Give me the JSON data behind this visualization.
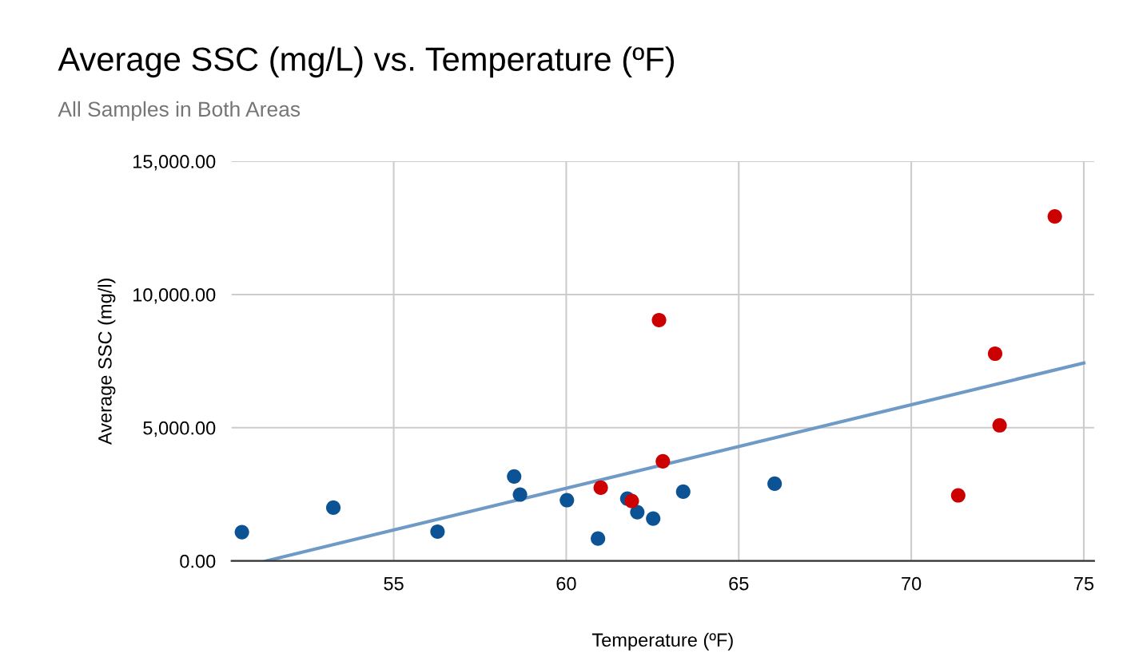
{
  "chart_data": {
    "type": "scatter",
    "title": "Average SSC (mg/L) vs. Temperature (ºF)",
    "subtitle": "All Samples in Both Areas",
    "xlabel": "Temperature (ºF)",
    "ylabel": "Average SSC (mg/l)",
    "series": [
      {
        "marker": "circle",
        "color": "#0b5394",
        "x": [
          50.6,
          53.25,
          56.27,
          58.49,
          58.66,
          60.02,
          60.92,
          61.77,
          62.06,
          62.52,
          63.39,
          66.04
        ],
        "values": [
          1080,
          2000,
          1100,
          3170,
          2490,
          2280,
          840,
          2340,
          1830,
          1590,
          2600,
          2900
        ]
      },
      {
        "marker": "circle",
        "color": "#cc0000",
        "x": [
          61.0,
          61.9,
          62.69,
          62.8,
          71.36,
          72.43,
          72.56,
          74.16
        ],
        "values": [
          2750,
          2250,
          9040,
          3740,
          2460,
          7780,
          5090,
          12930
        ]
      },
      {
        "type": "line",
        "color": "#6f9ac6",
        "x": [
          51.3,
          75.0
        ],
        "values": [
          0,
          7430
        ]
      }
    ],
    "grid": true,
    "xlim": [
      50.3,
      75.3
    ],
    "xticks": [
      55,
      60,
      65,
      70,
      75
    ],
    "ylim": [
      0,
      15000
    ],
    "yticks": [
      {
        "value": 0,
        "label": "0.00"
      },
      {
        "value": 5000,
        "label": "5,000.00"
      },
      {
        "value": 10000,
        "label": "10,000.00"
      },
      {
        "value": 15000,
        "label": "15,000.00"
      }
    ]
  }
}
